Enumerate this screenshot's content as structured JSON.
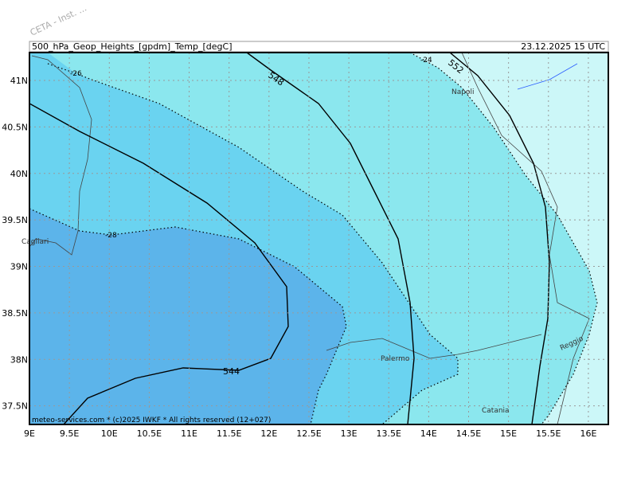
{
  "watermark": "CETA - Inst. ...",
  "header": {
    "title": "500_hPa_Geop_Heights_[gpdm]_Temp_[degC]",
    "date": "23.12.2025 15 UTC"
  },
  "footer": "meteo-services.com * (c)2025 IWKF * All rights reserved (12+027)",
  "map": {
    "xlim": [
      9,
      16.25
    ],
    "ylim": [
      37.3,
      41.3
    ],
    "xticks": [
      {
        "value": 9,
        "label": "9E"
      },
      {
        "value": 9.5,
        "label": "9.5E"
      },
      {
        "value": 10,
        "label": "10E"
      },
      {
        "value": 10.5,
        "label": "10.5E"
      },
      {
        "value": 11,
        "label": "11E"
      },
      {
        "value": 11.5,
        "label": "11.5E"
      },
      {
        "value": 12,
        "label": "12E"
      },
      {
        "value": 12.5,
        "label": "12.5E"
      },
      {
        "value": 13,
        "label": "13E"
      },
      {
        "value": 13.5,
        "label": "13.5E"
      },
      {
        "value": 14,
        "label": "14E"
      },
      {
        "value": 14.5,
        "label": "14.5E"
      },
      {
        "value": 15,
        "label": "15E"
      },
      {
        "value": 15.5,
        "label": "15.5E"
      },
      {
        "value": 16,
        "label": "16E"
      }
    ],
    "yticks": [
      {
        "value": 37.5,
        "label": "37.5N"
      },
      {
        "value": 38,
        "label": "38N"
      },
      {
        "value": 38.5,
        "label": "38.5N"
      },
      {
        "value": 39,
        "label": "39N"
      },
      {
        "value": 39.5,
        "label": "39.5N"
      },
      {
        "value": 40,
        "label": "40N"
      },
      {
        "value": 40.5,
        "label": "40.5N"
      },
      {
        "value": 41,
        "label": "41N"
      }
    ],
    "contour_labels": [
      "548",
      "552",
      "544",
      "-24",
      "-26",
      "-28"
    ],
    "cities": [
      "Napoli",
      "Cagliari",
      "Palermo",
      "Catania",
      "Reggio"
    ]
  }
}
